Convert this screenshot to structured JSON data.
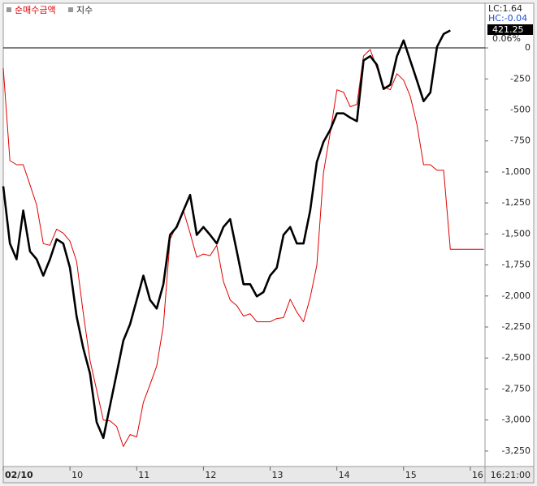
{
  "chart_data": {
    "type": "line",
    "legend": [
      "순매수금액",
      "지수"
    ],
    "info": {
      "lc": "LC:1.64",
      "hc": "HC:-0.04",
      "last": "421.25",
      "change": "0.06%",
      "time": "16:21:00"
    },
    "x": [
      9.0,
      9.1,
      9.2,
      9.3,
      9.4,
      9.5,
      9.6,
      9.7,
      9.8,
      9.9,
      10.0,
      10.1,
      10.2,
      10.3,
      10.4,
      10.5,
      10.6,
      10.7,
      10.8,
      10.9,
      11.0,
      11.1,
      11.2,
      11.3,
      11.4,
      11.5,
      11.6,
      11.7,
      11.8,
      11.9,
      12.0,
      12.1,
      12.2,
      12.3,
      12.4,
      12.5,
      12.6,
      12.7,
      12.8,
      12.9,
      13.0,
      13.1,
      13.2,
      13.3,
      13.4,
      13.5,
      13.6,
      13.7,
      13.8,
      13.9,
      14.0,
      14.1,
      14.2,
      14.3,
      14.4,
      14.5,
      14.6,
      14.7,
      14.8,
      14.9,
      15.0,
      15.1,
      15.2,
      15.3,
      15.4,
      15.5,
      15.6,
      15.7,
      15.8,
      15.9,
      16.0,
      16.1,
      16.2
    ],
    "series": [
      {
        "name": "순매수금액",
        "color": "#e00000",
        "axis": "y",
        "values": [
          -162,
          -909,
          -942,
          -942,
          -1104,
          -1266,
          -1578,
          -1591,
          -1461,
          -1494,
          -1558,
          -1721,
          -2143,
          -2519,
          -2760,
          -3000,
          -3006,
          -3052,
          -3214,
          -3117,
          -3136,
          -2857,
          -2714,
          -2565,
          -2240,
          -1545,
          -1429,
          -1312,
          -1494,
          -1688,
          -1662,
          -1675,
          -1591,
          -1883,
          -2032,
          -2078,
          -2162,
          -2143,
          -2208,
          -2208,
          -2208,
          -2182,
          -2175,
          -2026,
          -2130,
          -2208,
          -2013,
          -1753,
          -1006,
          -682,
          -338,
          -357,
          -474,
          -455,
          -65,
          -13,
          -162,
          -312,
          -338,
          -208,
          -260,
          -390,
          -617,
          -942,
          -942,
          -987,
          -987,
          -1623,
          -1623,
          -1623,
          -1623,
          -1623,
          -1623
        ]
      },
      {
        "name": "지수",
        "color": "#000000",
        "axis": "y2",
        "values": [
          419.07,
          418.27,
          418.05,
          418.73,
          418.16,
          418.05,
          417.82,
          418.05,
          418.33,
          418.27,
          417.93,
          417.25,
          416.8,
          416.45,
          415.77,
          415.55,
          416.0,
          416.45,
          416.91,
          417.14,
          417.48,
          417.82,
          417.48,
          417.36,
          417.7,
          418.39,
          418.5,
          418.73,
          418.95,
          418.39,
          418.5,
          418.39,
          418.27,
          418.5,
          418.61,
          418.16,
          417.7,
          417.7,
          417.53,
          417.59,
          417.82,
          417.93,
          418.39,
          418.5,
          418.27,
          418.27,
          418.73,
          419.41,
          419.69,
          419.86,
          420.09,
          420.09,
          420.03,
          419.98,
          420.83,
          420.89,
          420.77,
          420.43,
          420.49,
          420.89,
          421.11,
          420.83,
          420.55,
          420.26,
          420.38,
          421.02,
          421.2,
          421.25,
          null,
          null,
          null,
          null,
          null
        ]
      }
    ],
    "xlim": [
      9,
      16.22
    ],
    "xticks": [
      {
        "value": 9,
        "label": "02/10"
      },
      10,
      11,
      12,
      13,
      14,
      15,
      16
    ],
    "ylim": [
      -3375,
      360
    ],
    "yticks": [
      0,
      -250,
      -500,
      -750,
      {
        "value": -1000,
        "label": "-1,000"
      },
      {
        "value": -1250,
        "label": "-1,250"
      },
      {
        "value": -1500,
        "label": "-1,500"
      },
      {
        "value": -1750,
        "label": "-1,750"
      },
      {
        "value": -2000,
        "label": "-2,000"
      },
      {
        "value": -2250,
        "label": "-2,250"
      },
      {
        "value": -2500,
        "label": "-2,500"
      },
      {
        "value": -2750,
        "label": "-2,750"
      },
      {
        "value": -3000,
        "label": "-3,000"
      },
      {
        "value": -3250,
        "label": "-3,250"
      }
    ],
    "y2lim": [
      415.15,
      421.63
    ],
    "zero_line": true,
    "grid": false
  }
}
